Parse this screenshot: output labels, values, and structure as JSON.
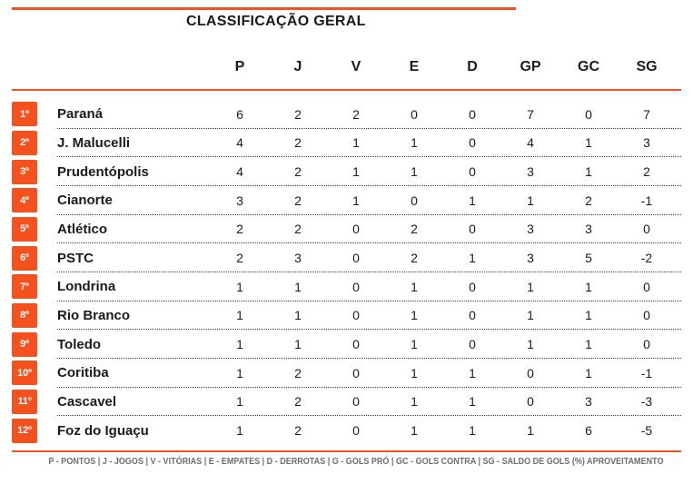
{
  "title": "CLASSIFICAÇÃO GERAL",
  "columns": [
    "P",
    "J",
    "V",
    "E",
    "D",
    "GP",
    "GC",
    "SG"
  ],
  "standings": [
    {
      "pos": "1º",
      "team": "Paraná",
      "p": 6,
      "j": 2,
      "v": 2,
      "e": 0,
      "d": 0,
      "gp": 7,
      "gc": 0,
      "sg": 7
    },
    {
      "pos": "2º",
      "team": "J. Malucelli",
      "p": 4,
      "j": 2,
      "v": 1,
      "e": 1,
      "d": 0,
      "gp": 4,
      "gc": 1,
      "sg": 3
    },
    {
      "pos": "3º",
      "team": "Prudentópolis",
      "p": 4,
      "j": 2,
      "v": 1,
      "e": 1,
      "d": 0,
      "gp": 3,
      "gc": 1,
      "sg": 2
    },
    {
      "pos": "4º",
      "team": "Cianorte",
      "p": 3,
      "j": 2,
      "v": 1,
      "e": 0,
      "d": 1,
      "gp": 1,
      "gc": 2,
      "sg": -1
    },
    {
      "pos": "5º",
      "team": "Atlético",
      "p": 2,
      "j": 2,
      "v": 0,
      "e": 2,
      "d": 0,
      "gp": 3,
      "gc": 3,
      "sg": 0
    },
    {
      "pos": "6º",
      "team": "PSTC",
      "p": 2,
      "j": 3,
      "v": 0,
      "e": 2,
      "d": 1,
      "gp": 3,
      "gc": 5,
      "sg": -2
    },
    {
      "pos": "7º",
      "team": "Londrina",
      "p": 1,
      "j": 1,
      "v": 0,
      "e": 1,
      "d": 0,
      "gp": 1,
      "gc": 1,
      "sg": 0
    },
    {
      "pos": "8º",
      "team": "Rio Branco",
      "p": 1,
      "j": 1,
      "v": 0,
      "e": 1,
      "d": 0,
      "gp": 1,
      "gc": 1,
      "sg": 0
    },
    {
      "pos": "9º",
      "team": "Toledo",
      "p": 1,
      "j": 1,
      "v": 0,
      "e": 1,
      "d": 0,
      "gp": 1,
      "gc": 1,
      "sg": 0
    },
    {
      "pos": "10º",
      "team": "Coritiba",
      "p": 1,
      "j": 2,
      "v": 0,
      "e": 1,
      "d": 1,
      "gp": 0,
      "gc": 1,
      "sg": -1
    },
    {
      "pos": "11º",
      "team": "Cascavel",
      "p": 1,
      "j": 2,
      "v": 0,
      "e": 1,
      "d": 1,
      "gp": 0,
      "gc": 3,
      "sg": -3
    },
    {
      "pos": "12º",
      "team": "Foz do Iguaçu",
      "p": 1,
      "j": 2,
      "v": 0,
      "e": 1,
      "d": 1,
      "gp": 1,
      "gc": 6,
      "sg": -5
    }
  ],
  "legend": "P - PONTOS | J - JOGOS | V - VITÓRIAS | E - EMPATES | D - DERROTAS | G - GOLS PRÓ | GC - GOLS CONTRA | SG - SALDO DE GOLS (%) APROVEITAMENTO",
  "colors": {
    "accent": "#F4511E",
    "text": "#1B1B1B",
    "legend_text": "#6E6E6E",
    "badge_text": "#FFFFFF"
  }
}
